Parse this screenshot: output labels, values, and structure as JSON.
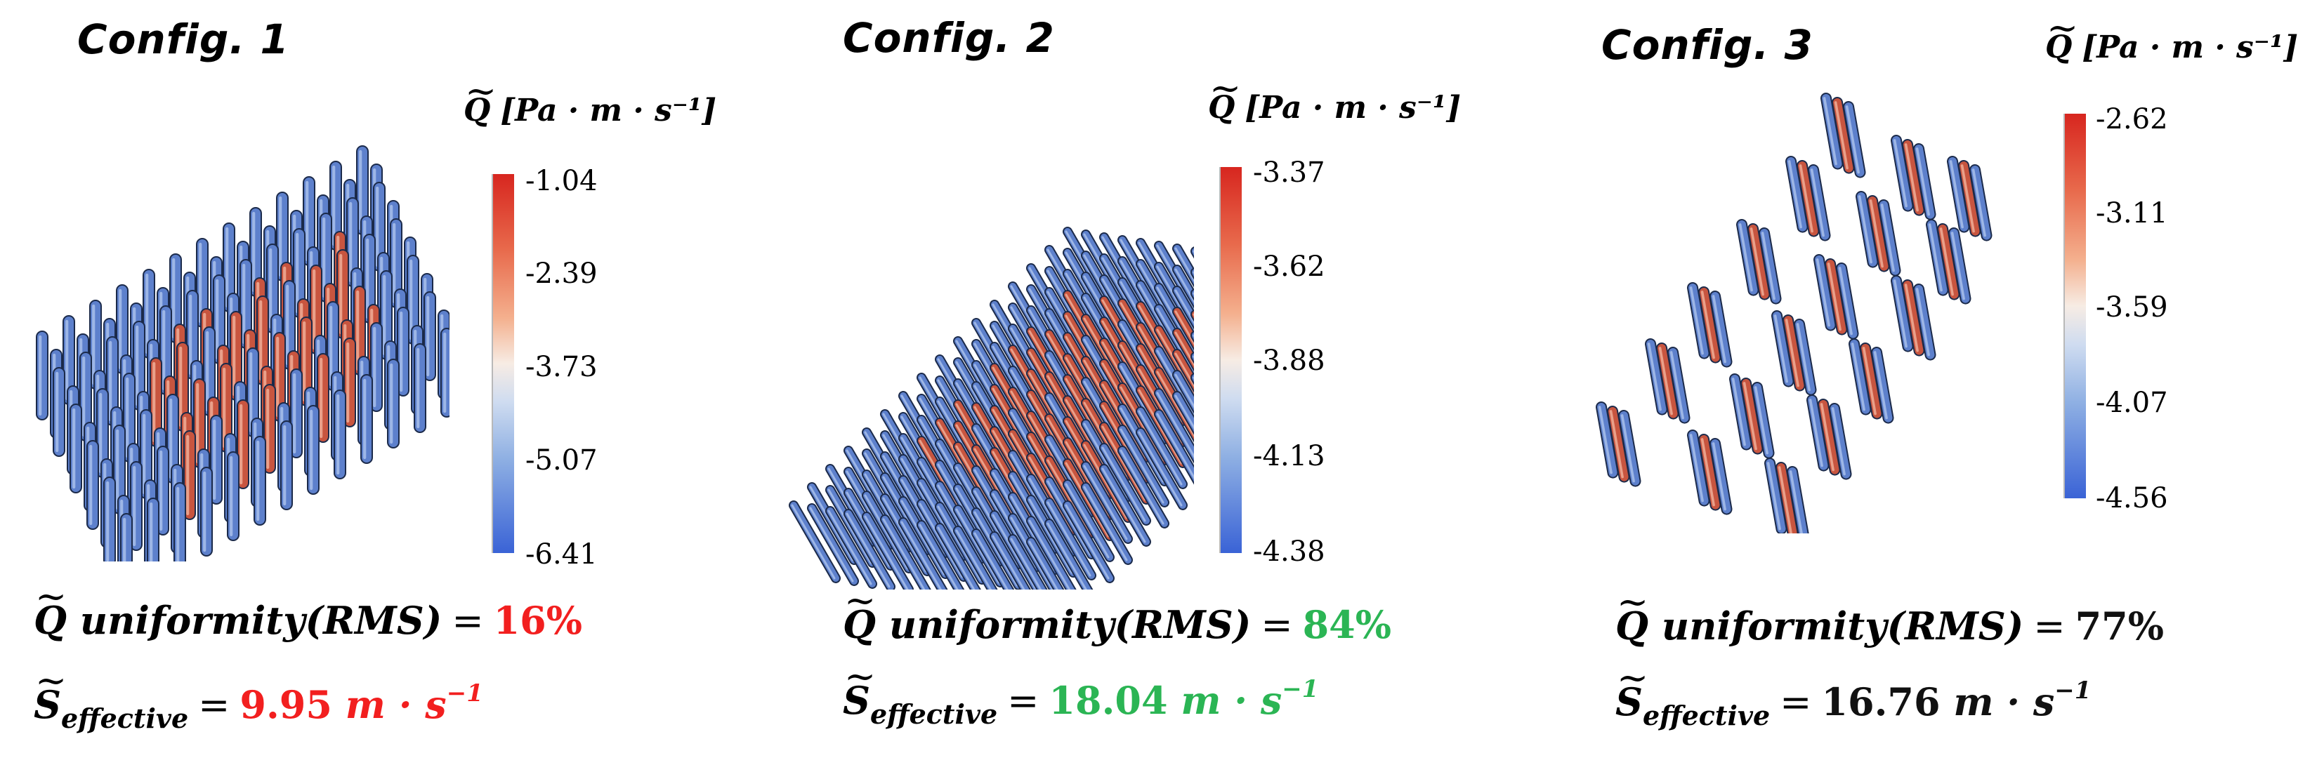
{
  "panels": [
    {
      "title": "Config. 1",
      "colorbar_title": {
        "symbol": "Q",
        "units": "[Pa · m · s⁻¹]"
      },
      "ticks": [
        "-1.04",
        "-2.39",
        "-3.73",
        "-5.07",
        "-6.41"
      ],
      "formula_uniformity": {
        "symbol": "Q",
        "text": "uniformity(RMS)",
        "eq": "=",
        "value": "16%",
        "color": "#f21f1f"
      },
      "formula_effective": {
        "symbol": "S",
        "sub": "effective",
        "eq": "=",
        "value": "9.95",
        "unit": "m · s",
        "exp": "−1",
        "color": "#f21f1f"
      }
    },
    {
      "title": "Config. 2",
      "colorbar_title": {
        "symbol": "Q",
        "units": "[Pa · m · s⁻¹]"
      },
      "ticks": [
        "-3.37",
        "-3.62",
        "-3.88",
        "-4.13",
        "-4.38"
      ],
      "formula_uniformity": {
        "symbol": "Q",
        "text": "uniformity(RMS)",
        "eq": "=",
        "value": "84%",
        "color": "#2bb554"
      },
      "formula_effective": {
        "symbol": "S",
        "sub": "effective",
        "eq": "=",
        "value": "18.04",
        "unit": "m · s",
        "exp": "−1",
        "color": "#2bb554"
      }
    },
    {
      "title": "Config. 3",
      "colorbar_title": {
        "symbol": "Q",
        "units": "[Pa · m · s⁻¹]"
      },
      "ticks": [
        "-2.62",
        "-3.11",
        "-3.59",
        "-4.07",
        "-4.56"
      ],
      "formula_uniformity": {
        "symbol": "Q",
        "text": "uniformity(RMS)",
        "eq": "=",
        "value": "77%",
        "color": "#111111"
      },
      "formula_effective": {
        "symbol": "S",
        "sub": "effective",
        "eq": "=",
        "value": "16.76",
        "unit": "m · s",
        "exp": "−1",
        "color": "#111111"
      }
    }
  ]
}
